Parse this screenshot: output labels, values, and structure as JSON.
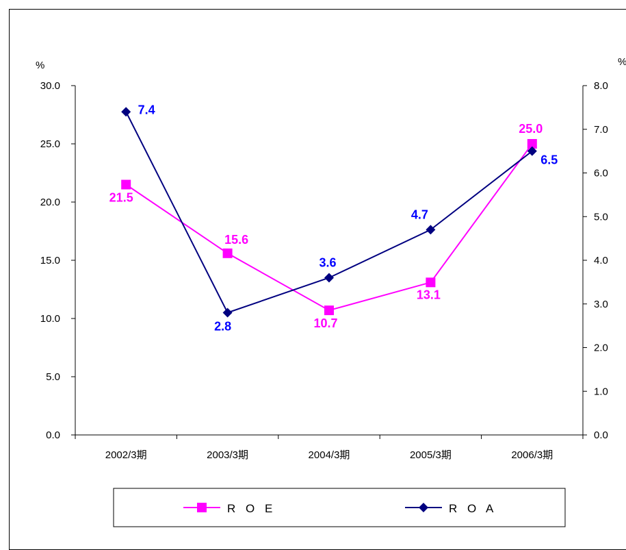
{
  "chart_data": {
    "type": "line",
    "categories": [
      "2002/3期",
      "2003/3期",
      "2004/3期",
      "2005/3期",
      "2006/3期"
    ],
    "left_axis": {
      "unit": "%",
      "ylim": [
        0,
        30
      ],
      "ticks": [
        "0.0",
        "5.0",
        "10.0",
        "15.0",
        "20.0",
        "25.0",
        "30.0"
      ]
    },
    "right_axis": {
      "unit": "%",
      "ylim": [
        0,
        8
      ],
      "ticks": [
        "0.0",
        "1.0",
        "2.0",
        "3.0",
        "4.0",
        "5.0",
        "6.0",
        "7.0",
        "8.0"
      ]
    },
    "series": [
      {
        "name": "R O E",
        "axis": "left",
        "color": "#ff00ff",
        "marker": "square",
        "values": [
          21.5,
          15.6,
          10.7,
          13.1,
          25.0
        ],
        "labels": [
          "21.5",
          "15.6",
          "10.7",
          "13.1",
          "25.0"
        ]
      },
      {
        "name": "R O A",
        "axis": "right",
        "color": "#000080",
        "label_color": "#0000ff",
        "marker": "diamond",
        "values": [
          7.4,
          2.8,
          3.6,
          4.7,
          6.5
        ],
        "labels": [
          "7.4",
          "2.8",
          "3.6",
          "4.7",
          "6.5"
        ]
      }
    ],
    "legend": "bottom",
    "grid": false
  }
}
